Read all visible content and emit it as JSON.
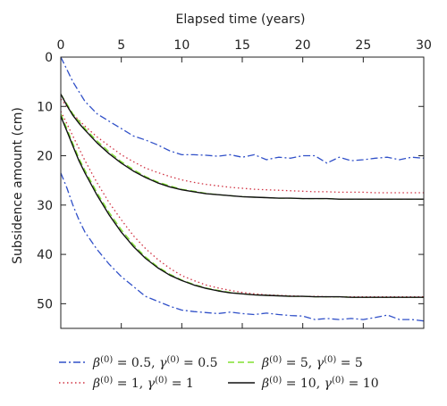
{
  "chart_data": {
    "type": "line",
    "xlabel": "Elapsed time (years)",
    "ylabel": "Subsidence amount (cm)",
    "xlim": [
      0,
      30
    ],
    "ylim": [
      55,
      0
    ],
    "x_ticks": [
      0,
      5,
      10,
      15,
      20,
      25,
      30
    ],
    "y_ticks": [
      0,
      10,
      20,
      30,
      40,
      50
    ],
    "x_axis_position": "top",
    "y_axis_inverted": true,
    "grid": false,
    "legend_position": "bottom",
    "x": [
      0,
      0.5,
      1,
      1.5,
      2,
      3,
      4,
      5,
      6,
      7,
      8,
      9,
      10,
      11,
      12,
      13,
      14,
      15,
      16,
      17,
      18,
      19,
      20,
      21,
      22,
      23,
      24,
      25,
      26,
      27,
      28,
      29,
      30
    ],
    "series": [
      {
        "name": "β(0) = 0.5, γ(0) = 0.5",
        "color": "#3050c8",
        "dash": "dashdot",
        "groups": [
          [
            0,
            2.5,
            5,
            7,
            9,
            11.5,
            13,
            14.5,
            16,
            16.8,
            17.8,
            19,
            19.8,
            19.8,
            19.9,
            20.1,
            19.8,
            20.3,
            19.8,
            20.8,
            20.3,
            20.5,
            20.0,
            20.0,
            21.5,
            20.3,
            21.0,
            20.8,
            20.5,
            20.3,
            20.8,
            20.3,
            20.5
          ],
          [
            23.5,
            26.5,
            30,
            33,
            35.5,
            39,
            42,
            44.5,
            46.5,
            48.5,
            49.5,
            50.5,
            51.3,
            51.6,
            51.8,
            52,
            51.7,
            52,
            52.2,
            51.9,
            52.2,
            52.4,
            52.5,
            53.2,
            53.0,
            53.2,
            53.0,
            53.2,
            52.8,
            52.3,
            53.2,
            53.2,
            53.5
          ]
        ]
      },
      {
        "name": "β(0) = 1, γ(0) = 1",
        "color": "#d03040",
        "dash": "dotted",
        "groups": [
          [
            8.5,
            10,
            11.5,
            12.8,
            14,
            16.2,
            18,
            19.8,
            21.2,
            22.5,
            23.4,
            24.2,
            24.9,
            25.4,
            25.8,
            26.1,
            26.4,
            26.6,
            26.8,
            26.9,
            27.0,
            27.1,
            27.2,
            27.3,
            27.3,
            27.4,
            27.4,
            27.4,
            27.5,
            27.5,
            27.5,
            27.5,
            27.5
          ],
          [
            11,
            13.5,
            16,
            18.5,
            21,
            25.5,
            29.5,
            33,
            36.2,
            38.8,
            41,
            42.8,
            44.3,
            45.3,
            46.2,
            46.8,
            47.3,
            47.7,
            48.0,
            48.2,
            48.3,
            48.4,
            48.5,
            48.5,
            48.6,
            48.6,
            48.6,
            48.6,
            48.6,
            48.6,
            48.6,
            48.6,
            48.6
          ]
        ]
      },
      {
        "name": "β(0) = 5, γ(0) = 5",
        "color": "#80e030",
        "dash": "dashed",
        "groups": [
          [
            7.5,
            9.5,
            11.5,
            13,
            14.5,
            17,
            19.2,
            21.2,
            22.8,
            24.2,
            25.3,
            26.1,
            26.8,
            27.2,
            27.6,
            27.9,
            28.1,
            28.3,
            28.4,
            28.5,
            28.6,
            28.6,
            28.7,
            28.7,
            28.7,
            28.8,
            28.8,
            28.8,
            28.8,
            28.8,
            28.8,
            28.8,
            28.8
          ],
          [
            11.5,
            14.5,
            17.5,
            20.5,
            23,
            27.5,
            31.5,
            35,
            38,
            40.5,
            42.5,
            44,
            45.2,
            46.1,
            46.8,
            47.3,
            47.7,
            48.0,
            48.2,
            48.3,
            48.4,
            48.5,
            48.5,
            48.6,
            48.6,
            48.6,
            48.7,
            48.7,
            48.7,
            48.7,
            48.7,
            48.7,
            48.7
          ]
        ]
      },
      {
        "name": "β(0) = 10, γ(0) = 10",
        "color": "#111111",
        "dash": "solid",
        "groups": [
          [
            7.5,
            9.8,
            11.8,
            13.4,
            14.8,
            17.4,
            19.6,
            21.5,
            23.1,
            24.4,
            25.5,
            26.3,
            26.9,
            27.3,
            27.7,
            27.9,
            28.1,
            28.3,
            28.4,
            28.5,
            28.6,
            28.6,
            28.7,
            28.7,
            28.7,
            28.8,
            28.8,
            28.8,
            28.8,
            28.8,
            28.8,
            28.8,
            28.8
          ],
          [
            12,
            15,
            18,
            21,
            23.5,
            28,
            32,
            35.5,
            38.4,
            40.8,
            42.7,
            44.2,
            45.3,
            46.2,
            46.9,
            47.4,
            47.8,
            48.0,
            48.2,
            48.3,
            48.4,
            48.5,
            48.5,
            48.6,
            48.6,
            48.6,
            48.7,
            48.7,
            48.7,
            48.7,
            48.7,
            48.7,
            48.7
          ]
        ]
      }
    ],
    "legend": [
      {
        "text": "β(0) = 0.5, γ(0) = 0.5",
        "series": 0
      },
      {
        "text": "β(0) = 5, γ(0) = 5",
        "series": 2
      },
      {
        "text": "β(0) = 1, γ(0) = 1",
        "series": 1
      },
      {
        "text": "β(0) = 10, γ(0) = 10",
        "series": 3
      }
    ],
    "legend_parts": [
      {
        "beta": "0.5",
        "gamma": "0.5"
      },
      {
        "beta": "5",
        "gamma": "5"
      },
      {
        "beta": "1",
        "gamma": "1"
      },
      {
        "beta": "10",
        "gamma": "10"
      }
    ]
  }
}
